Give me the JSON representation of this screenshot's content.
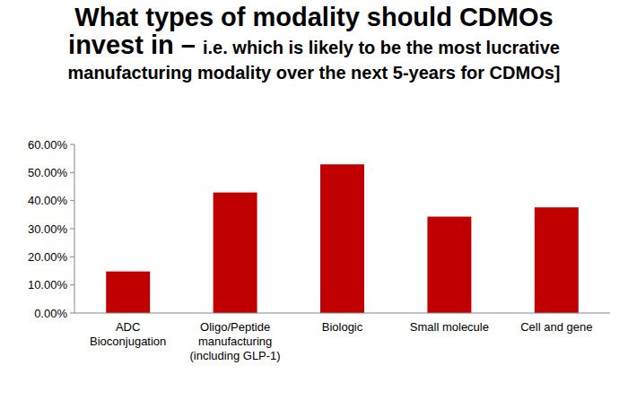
{
  "chart_data": {
    "type": "bar",
    "title": "What types of modality should CDMOs invest in –",
    "subtitle": "i.e. which is likely to be the most lucrative manufacturing modality over the next 5-years for CDMOs]",
    "categories": [
      "ADC Bioconjugation",
      "Oligo/Peptide manufacturing (including GLP-1)",
      "Biologic",
      "Small molecule",
      "Cell and gene"
    ],
    "values": [
      14.8,
      42.9,
      52.9,
      34.3,
      37.6
    ],
    "color": "#c00000",
    "ylim": [
      0,
      60
    ],
    "yticks": [
      {
        "value": 0,
        "label": "0.00%"
      },
      {
        "value": 10,
        "label": "10.00%"
      },
      {
        "value": 20,
        "label": "20.00%"
      },
      {
        "value": 30,
        "label": "30.00%"
      },
      {
        "value": 40,
        "label": "40.00%"
      },
      {
        "value": 50,
        "label": "50.00%"
      },
      {
        "value": 60,
        "label": "60.00%"
      }
    ],
    "grid": false,
    "data_labels": false
  }
}
